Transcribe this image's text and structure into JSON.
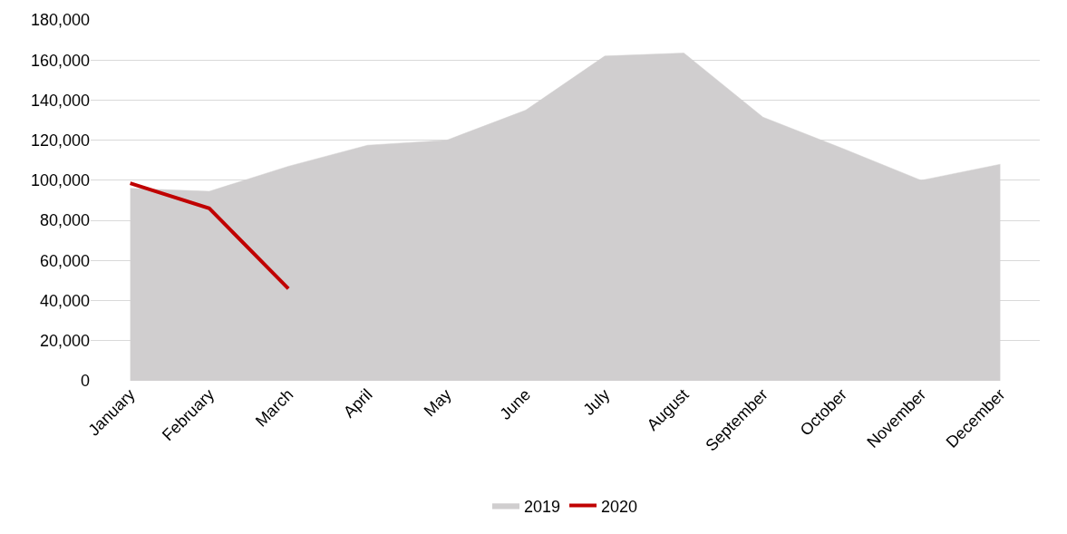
{
  "chart_data": {
    "type": "area",
    "categories": [
      "January",
      "February",
      "March",
      "April",
      "May",
      "June",
      "July",
      "August",
      "September",
      "October",
      "November",
      "December"
    ],
    "series": [
      {
        "name": "2019",
        "color": "#d0cecf",
        "values": [
          96000,
          94500,
          107000,
          117500,
          120000,
          135000,
          162000,
          163500,
          131500,
          116000,
          100000,
          108000
        ]
      },
      {
        "name": "2020",
        "type": "line",
        "color": "#c00000",
        "values": [
          98500,
          86000,
          46000,
          null,
          null,
          null,
          null,
          null,
          null,
          null,
          null,
          null
        ]
      }
    ],
    "ylim": [
      0,
      180000
    ],
    "yticks": [
      {
        "value": 0,
        "label": "0"
      },
      {
        "value": 20000,
        "label": "20,000"
      },
      {
        "value": 40000,
        "label": "40,000"
      },
      {
        "value": 60000,
        "label": "60,000"
      },
      {
        "value": 80000,
        "label": "80,000"
      },
      {
        "value": 100000,
        "label": "100,000"
      },
      {
        "value": 120000,
        "label": "120,000"
      },
      {
        "value": 140000,
        "label": "140,000"
      },
      {
        "value": 160000,
        "label": "160,000"
      },
      {
        "value": 180000,
        "label": "180,000"
      }
    ],
    "grid": "y",
    "legend": "bottom"
  }
}
